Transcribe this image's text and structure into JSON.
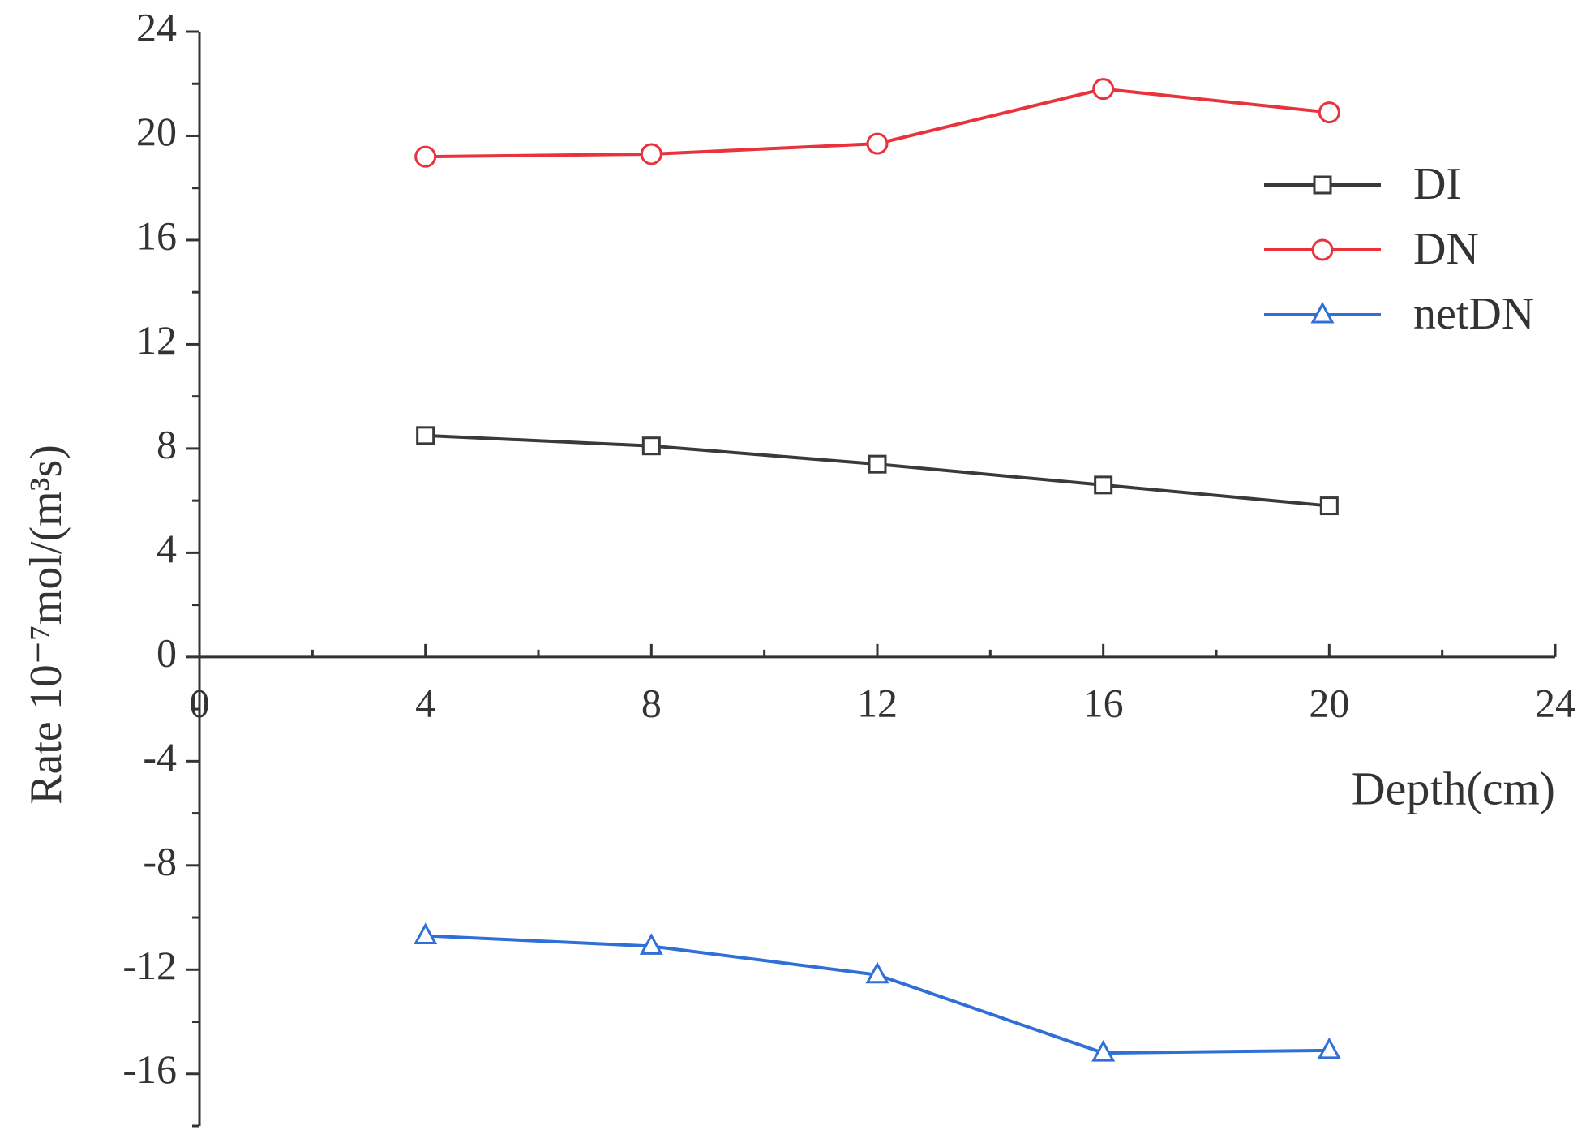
{
  "chart_data": {
    "type": "line",
    "xlabel": "Depth(cm)",
    "ylabel": "Rate 10⁻⁷mol/(m³s)",
    "x": [
      4,
      8,
      12,
      16,
      20
    ],
    "series": [
      {
        "name": "DI",
        "color": "#3a3a3a",
        "marker": "square",
        "values": [
          8.5,
          8.1,
          7.4,
          6.6,
          5.8
        ]
      },
      {
        "name": "DN",
        "color": "#e8323c",
        "marker": "circle",
        "values": [
          19.2,
          19.3,
          19.7,
          21.8,
          20.9
        ]
      },
      {
        "name": "netDN",
        "color": "#2f6fd6",
        "marker": "triangle",
        "values": [
          -10.7,
          -11.1,
          -12.2,
          -15.2,
          -15.1
        ]
      }
    ],
    "xlim": [
      0,
      24
    ],
    "xticks": [
      0,
      4,
      8,
      12,
      16,
      20,
      24
    ],
    "ylim": [
      -18,
      24
    ],
    "yticks": [
      -16,
      -12,
      -8,
      -4,
      0,
      4,
      8,
      12,
      16,
      20,
      24
    ],
    "grid": false,
    "legend": "upper right"
  }
}
